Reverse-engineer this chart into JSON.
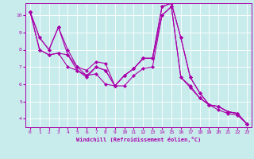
{
  "xlabel": "Windchill (Refroidissement éolien,°C)",
  "bg_color": "#c8ecec",
  "line_color": "#aa00aa",
  "marker": "D",
  "marker_size": 2.2,
  "line_width": 0.8,
  "xlim": [
    -0.5,
    23.5
  ],
  "ylim": [
    3.5,
    10.7
  ],
  "xticks": [
    0,
    1,
    2,
    3,
    4,
    5,
    6,
    7,
    8,
    9,
    10,
    11,
    12,
    13,
    14,
    15,
    16,
    17,
    18,
    19,
    20,
    21,
    22,
    23
  ],
  "yticks": [
    4,
    5,
    6,
    7,
    8,
    9,
    10
  ],
  "grid_color": "#aadddd",
  "lines": [
    {
      "x": [
        0,
        1,
        2,
        3,
        4,
        5,
        6,
        7,
        8,
        9,
        10,
        11,
        12,
        13,
        14,
        15,
        16,
        17,
        18,
        19,
        20,
        21,
        22,
        23
      ],
      "y": [
        10.2,
        8.7,
        8.0,
        9.3,
        8.0,
        7.0,
        6.8,
        7.3,
        7.2,
        5.9,
        6.5,
        6.9,
        7.5,
        7.5,
        10.5,
        10.7,
        8.7,
        6.4,
        5.5,
        4.8,
        4.7,
        4.4,
        4.3,
        3.7
      ]
    },
    {
      "x": [
        0,
        1,
        2,
        3,
        4,
        5,
        6,
        7,
        8,
        9,
        10,
        11,
        12,
        13,
        14,
        15,
        16,
        17,
        18,
        19,
        20,
        21,
        22,
        23
      ],
      "y": [
        10.2,
        8.7,
        8.0,
        9.3,
        7.7,
        7.0,
        6.5,
        6.6,
        6.0,
        5.9,
        6.5,
        6.9,
        7.5,
        7.5,
        10.5,
        10.7,
        8.7,
        6.4,
        5.5,
        4.8,
        4.7,
        4.4,
        4.3,
        3.7
      ]
    },
    {
      "x": [
        0,
        1,
        2,
        3,
        4,
        5,
        6,
        7,
        8,
        9,
        10,
        11,
        12,
        13,
        14,
        15,
        16,
        17,
        18,
        19,
        20,
        21,
        22,
        23
      ],
      "y": [
        10.2,
        8.0,
        7.7,
        7.8,
        7.7,
        6.8,
        6.5,
        7.0,
        6.8,
        5.9,
        6.5,
        6.9,
        7.5,
        7.5,
        10.0,
        10.5,
        6.4,
        5.9,
        5.2,
        4.8,
        4.7,
        4.4,
        4.3,
        3.7
      ]
    },
    {
      "x": [
        0,
        1,
        2,
        3,
        4,
        5,
        6,
        7,
        8,
        9,
        10,
        11,
        12,
        13,
        14,
        15,
        16,
        17,
        18,
        19,
        20,
        21,
        22,
        23
      ],
      "y": [
        10.2,
        8.0,
        7.7,
        7.8,
        7.0,
        6.8,
        6.4,
        7.0,
        6.8,
        5.9,
        5.9,
        6.5,
        6.9,
        7.0,
        10.0,
        10.5,
        6.4,
        5.8,
        5.2,
        4.8,
        4.5,
        4.3,
        4.2,
        3.7
      ]
    }
  ]
}
